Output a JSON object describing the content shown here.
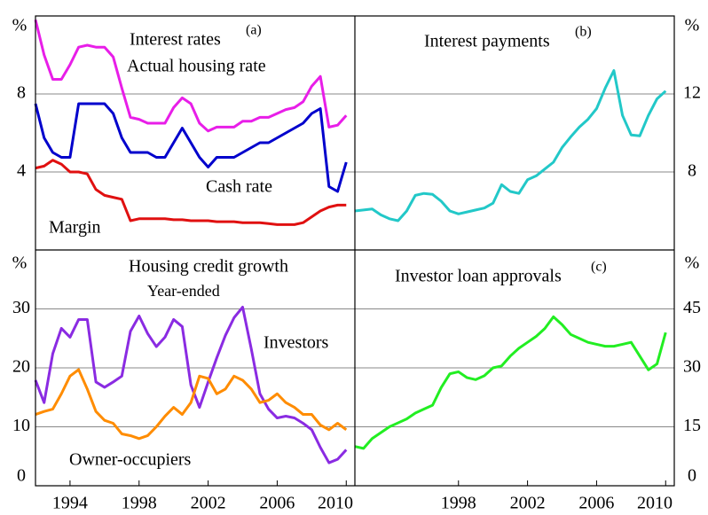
{
  "chart_data": [
    {
      "type": "line",
      "title": "Interest rates",
      "title_note": "(a)",
      "y_unit": "%",
      "x": [
        1992,
        1992.5,
        1993,
        1993.5,
        1994,
        1994.5,
        1995,
        1995.5,
        1996,
        1996.5,
        1997,
        1997.5,
        1998,
        1998.5,
        1999,
        1999.5,
        2000,
        2000.5,
        2001,
        2001.5,
        2002,
        2002.5,
        2003,
        2003.5,
        2004,
        2004.5,
        2005,
        2005.5,
        2006,
        2006.5,
        2007,
        2007.5,
        2008,
        2008.5,
        2009,
        2009.5,
        2010
      ],
      "xlim": [
        1992,
        2010.5
      ],
      "ylim": [
        0,
        12
      ],
      "yticks": [
        4,
        8
      ],
      "grid": true,
      "series": [
        {
          "name": "Actual housing rate",
          "color": "#e81ee8",
          "values": [
            11.8,
            10.0,
            8.75,
            8.75,
            9.5,
            10.4,
            10.5,
            10.4,
            10.4,
            9.9,
            8.3,
            6.8,
            6.7,
            6.5,
            6.5,
            6.5,
            7.3,
            7.8,
            7.5,
            6.5,
            6.1,
            6.3,
            6.3,
            6.3,
            6.6,
            6.6,
            6.8,
            6.8,
            7.0,
            7.2,
            7.3,
            7.6,
            8.4,
            8.9,
            6.3,
            6.4,
            6.9
          ]
        },
        {
          "name": "Cash rate",
          "color": "#0000cc",
          "values": [
            7.5,
            5.75,
            5.0,
            4.75,
            4.75,
            7.5,
            7.5,
            7.5,
            7.5,
            7.0,
            5.75,
            5.0,
            5.0,
            5.0,
            4.75,
            4.75,
            5.5,
            6.25,
            5.5,
            4.75,
            4.25,
            4.75,
            4.75,
            4.75,
            5.0,
            5.25,
            5.5,
            5.5,
            5.75,
            6.0,
            6.25,
            6.5,
            7.0,
            7.25,
            3.25,
            3.0,
            4.5
          ]
        },
        {
          "name": "Margin",
          "color": "#e01010",
          "values": [
            4.2,
            4.3,
            4.6,
            4.4,
            4.0,
            4.0,
            3.9,
            3.1,
            2.8,
            2.7,
            2.6,
            1.5,
            1.6,
            1.6,
            1.6,
            1.6,
            1.55,
            1.55,
            1.5,
            1.5,
            1.5,
            1.45,
            1.45,
            1.45,
            1.4,
            1.4,
            1.4,
            1.35,
            1.3,
            1.3,
            1.3,
            1.4,
            1.7,
            2.0,
            2.2,
            2.3,
            2.3
          ]
        }
      ]
    },
    {
      "type": "line",
      "title": "Interest payments",
      "title_note": "(b)",
      "y_unit": "%",
      "x": [
        1992,
        1992.5,
        1993,
        1993.5,
        1994,
        1994.5,
        1995,
        1995.5,
        1996,
        1996.5,
        1997,
        1997.5,
        1998,
        1998.5,
        1999,
        1999.5,
        2000,
        2000.5,
        2001,
        2001.5,
        2002,
        2002.5,
        2003,
        2003.5,
        2004,
        2004.5,
        2005,
        2005.5,
        2006,
        2006.5,
        2007,
        2007.5,
        2008,
        2008.5,
        2009,
        2009.5,
        2010
      ],
      "xlim": [
        1992,
        2010.5
      ],
      "ylim": [
        4,
        16
      ],
      "yticks": [
        8,
        12
      ],
      "grid": true,
      "series": [
        {
          "color": "#22c8c8",
          "values": [
            6.0,
            6.05,
            6.1,
            5.8,
            5.6,
            5.5,
            6.0,
            6.8,
            6.9,
            6.85,
            6.5,
            6.0,
            5.85,
            5.95,
            6.05,
            6.15,
            6.4,
            7.35,
            7.0,
            6.9,
            7.6,
            7.8,
            8.15,
            8.5,
            9.25,
            9.8,
            10.3,
            10.7,
            11.25,
            12.3,
            13.2,
            10.9,
            9.9,
            9.85,
            10.9,
            11.75,
            12.15
          ]
        }
      ]
    },
    {
      "type": "line",
      "title": "Housing credit growth",
      "subtitle": "Year-ended",
      "y_unit": "%",
      "x": [
        1992,
        1992.5,
        1993,
        1993.5,
        1994,
        1994.5,
        1995,
        1995.5,
        1996,
        1996.5,
        1997,
        1997.5,
        1998,
        1998.5,
        1999,
        1999.5,
        2000,
        2000.5,
        2001,
        2001.5,
        2002,
        2002.5,
        2003,
        2003.5,
        2004,
        2004.5,
        2005,
        2005.5,
        2006,
        2006.5,
        2007,
        2007.5,
        2008,
        2008.5,
        2009,
        2009.5,
        2010
      ],
      "xlim": [
        1992,
        2010.5
      ],
      "xticks": [
        1994,
        1998,
        2002,
        2006,
        2010
      ],
      "ylim": [
        0,
        40
      ],
      "yticks": [
        0,
        10,
        20,
        30
      ],
      "grid": true,
      "series": [
        {
          "name": "Investors",
          "color": "#8a2be2",
          "values": [
            17.9,
            14.1,
            22.4,
            26.7,
            25.2,
            28.2,
            28.2,
            17.6,
            16.7,
            17.6,
            18.6,
            26.2,
            28.8,
            25.8,
            23.6,
            25.2,
            28.2,
            27.0,
            17.1,
            13.3,
            17.6,
            21.7,
            25.5,
            28.5,
            30.3,
            23.2,
            15.6,
            13.0,
            11.5,
            11.8,
            11.5,
            10.6,
            9.5,
            6.5,
            3.9,
            4.5,
            6.1
          ]
        },
        {
          "name": "Owner-occupiers",
          "color": "#ff8c00",
          "values": [
            12.1,
            12.6,
            13.0,
            15.6,
            18.6,
            19.7,
            16.4,
            12.6,
            11.1,
            10.6,
            8.8,
            8.5,
            8.0,
            8.5,
            10.0,
            11.8,
            13.3,
            12.1,
            14.1,
            18.6,
            18.2,
            15.6,
            16.4,
            18.6,
            17.9,
            16.4,
            14.1,
            14.5,
            15.6,
            14.1,
            13.3,
            12.1,
            12.1,
            10.3,
            9.5,
            10.6,
            9.5
          ]
        }
      ]
    },
    {
      "type": "line",
      "title": "Investor loan approvals",
      "title_note": "(c)",
      "y_unit": "%",
      "x": [
        1992,
        1992.5,
        1993,
        1993.5,
        1994,
        1994.5,
        1995,
        1995.5,
        1996,
        1996.5,
        1997,
        1997.5,
        1998,
        1998.5,
        1999,
        1999.5,
        2000,
        2000.5,
        2001,
        2001.5,
        2002,
        2002.5,
        2003,
        2003.5,
        2004,
        2004.5,
        2005,
        2005.5,
        2006,
        2006.5,
        2007,
        2007.5,
        2008,
        2008.5,
        2009,
        2009.5,
        2010
      ],
      "xlim": [
        1992,
        2010.5
      ],
      "xticks": [
        1998,
        2002,
        2006,
        2010
      ],
      "ylim": [
        0,
        60
      ],
      "yticks": [
        0,
        15,
        30,
        45
      ],
      "grid": true,
      "series": [
        {
          "color": "#22ee22",
          "values": [
            10,
            9.5,
            12,
            13.5,
            15,
            16,
            17,
            18.5,
            19.5,
            20.5,
            25,
            28.5,
            29,
            27.5,
            27,
            28,
            30,
            30.5,
            33,
            35,
            36.5,
            38,
            40,
            43,
            41,
            38.5,
            37.5,
            36.5,
            36,
            35.5,
            35.5,
            36,
            36.5,
            33,
            29.5,
            31,
            39
          ]
        }
      ]
    }
  ]
}
